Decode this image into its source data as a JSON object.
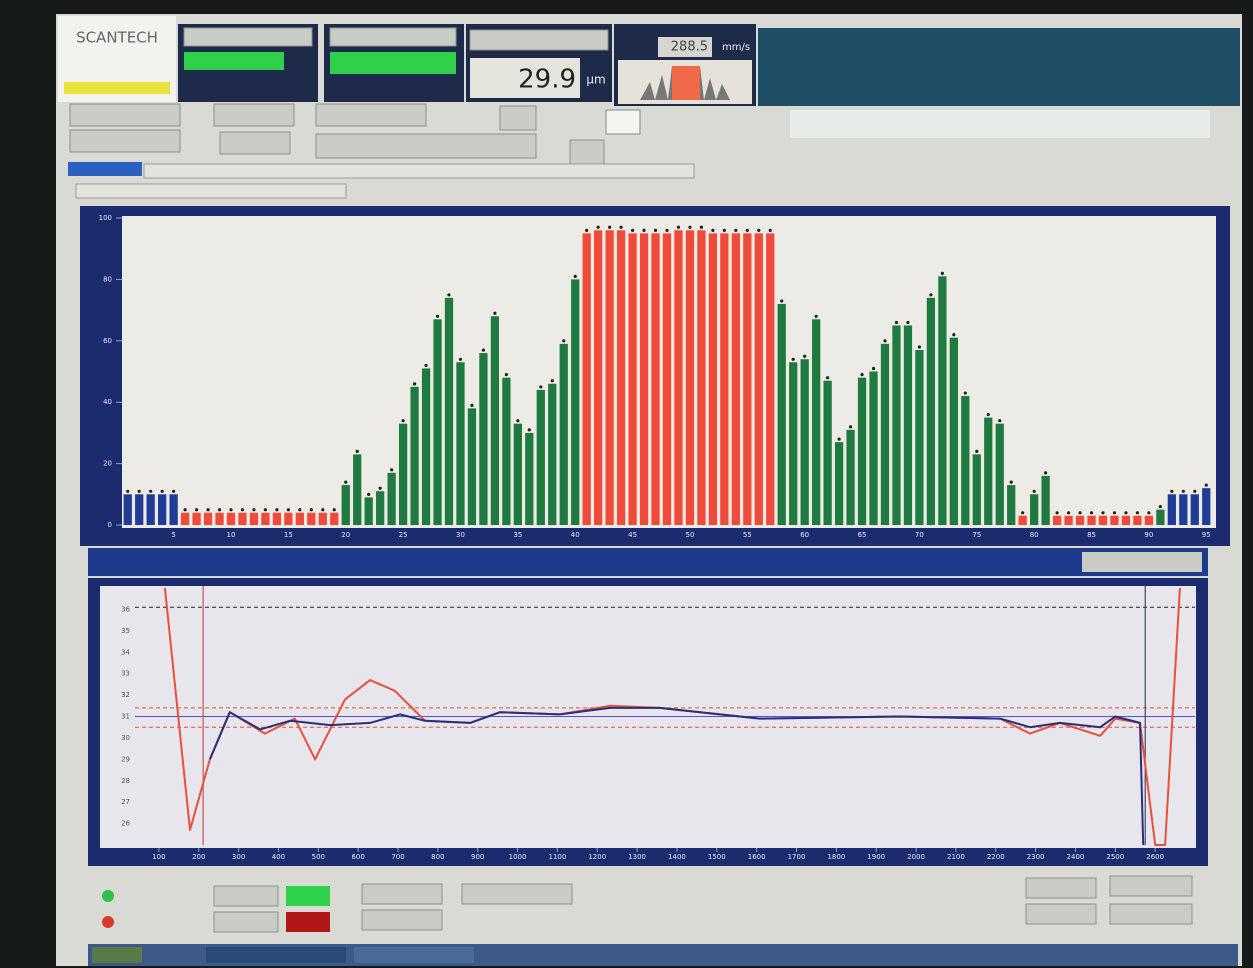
{
  "header": {
    "logo": "SCANTECH",
    "reading": "29.9",
    "unit": "µm",
    "speed": "288.5",
    "speed_unit": "mm/s"
  },
  "chart_data": [
    {
      "type": "bar",
      "categories": [
        null,
        null,
        null,
        null,
        5,
        null,
        null,
        null,
        null,
        10,
        null,
        null,
        null,
        null,
        15,
        null,
        null,
        null,
        null,
        20,
        null,
        null,
        null,
        null,
        25,
        null,
        null,
        null,
        null,
        30,
        null,
        null,
        null,
        null,
        35,
        null,
        null,
        null,
        null,
        40,
        null,
        null,
        null,
        null,
        45,
        null,
        null,
        null,
        null,
        50,
        null,
        null,
        null,
        null,
        55,
        null,
        null,
        null,
        null,
        60,
        null,
        null,
        null,
        null,
        65,
        null,
        null,
        null,
        null,
        70,
        null,
        null,
        null,
        null,
        75,
        null,
        null,
        null,
        null,
        80,
        null,
        null,
        null,
        null,
        85,
        null,
        null,
        null,
        null,
        90,
        null,
        null,
        null,
        null,
        95
      ],
      "values": [
        10,
        10,
        10,
        10,
        10,
        4,
        4,
        4,
        4,
        4,
        4,
        4,
        4,
        4,
        4,
        4,
        4,
        4,
        4,
        13,
        23,
        9,
        11,
        17,
        33,
        45,
        51,
        67,
        74,
        53,
        38,
        56,
        68,
        48,
        33,
        30,
        44,
        46,
        59,
        80,
        95,
        96,
        96,
        96,
        95,
        95,
        95,
        95,
        96,
        96,
        96,
        95,
        95,
        95,
        95,
        95,
        95,
        72,
        53,
        54,
        67,
        47,
        27,
        31,
        48,
        50,
        59,
        65,
        65,
        57,
        74,
        81,
        61,
        42,
        23,
        35,
        33,
        13,
        3,
        10,
        16,
        3,
        3,
        3,
        3,
        3,
        3,
        3,
        3,
        3,
        5,
        10,
        10,
        10,
        12
      ],
      "colors": [
        "#203c96",
        "#203c96",
        "#203c96",
        "#203c96",
        "#203c96",
        "#f04a3a",
        "#f04a3a",
        "#f04a3a",
        "#f04a3a",
        "#f04a3a",
        "#f04a3a",
        "#f04a3a",
        "#f04a3a",
        "#f04a3a",
        "#f04a3a",
        "#f04a3a",
        "#f04a3a",
        "#f04a3a",
        "#f04a3a",
        "#1f7a40",
        "#1f7a40",
        "#1f7a40",
        "#1f7a40",
        "#1f7a40",
        "#1f7a40",
        "#1f7a40",
        "#1f7a40",
        "#1f7a40",
        "#1f7a40",
        "#1f7a40",
        "#1f7a40",
        "#1f7a40",
        "#1f7a40",
        "#1f7a40",
        "#1f7a40",
        "#1f7a40",
        "#1f7a40",
        "#1f7a40",
        "#1f7a40",
        "#1f7a40",
        "#f04a3a",
        "#f04a3a",
        "#f04a3a",
        "#f04a3a",
        "#f04a3a",
        "#f04a3a",
        "#f04a3a",
        "#f04a3a",
        "#f04a3a",
        "#f04a3a",
        "#f04a3a",
        "#f04a3a",
        "#f04a3a",
        "#f04a3a",
        "#f04a3a",
        "#f04a3a",
        "#f04a3a",
        "#1f7a40",
        "#1f7a40",
        "#1f7a40",
        "#1f7a40",
        "#1f7a40",
        "#1f7a40",
        "#1f7a40",
        "#1f7a40",
        "#1f7a40",
        "#1f7a40",
        "#1f7a40",
        "#1f7a40",
        "#1f7a40",
        "#1f7a40",
        "#1f7a40",
        "#1f7a40",
        "#1f7a40",
        "#1f7a40",
        "#1f7a40",
        "#1f7a40",
        "#1f7a40",
        "#f04a3a",
        "#1f7a40",
        "#1f7a40",
        "#f04a3a",
        "#f04a3a",
        "#f04a3a",
        "#f04a3a",
        "#f04a3a",
        "#f04a3a",
        "#f04a3a",
        "#f04a3a",
        "#f04a3a",
        "#1f7a40",
        "#203c96",
        "#203c96",
        "#203c96",
        "#203c96"
      ],
      "ylim": [
        0,
        100
      ],
      "yticks": [
        0,
        20,
        40,
        60,
        80,
        100
      ]
    },
    {
      "type": "line",
      "xlim": [
        40,
        2700
      ],
      "xticks": [
        100,
        200,
        300,
        400,
        500,
        600,
        700,
        800,
        900,
        1000,
        1100,
        1200,
        1300,
        1400,
        1500,
        1600,
        1700,
        1800,
        1900,
        2000,
        2100,
        2200,
        2300,
        2400,
        2500,
        2600
      ],
      "ylim": [
        25,
        37
      ],
      "yticks": [
        26,
        27,
        28,
        29,
        30,
        31,
        32,
        33,
        34,
        35,
        36
      ],
      "series": [
        {
          "color": "#e8503a",
          "x": [
            115,
            178,
            228,
            278,
            366,
            441,
            492,
            567,
            630,
            692,
            768,
            881,
            956,
            1106,
            1232,
            1357,
            1458,
            1608,
            1960,
            2211,
            2286,
            2361,
            2462,
            2500,
            2562,
            2600,
            2625,
            2662
          ],
          "values": [
            37,
            25.7,
            29.0,
            31.2,
            30.2,
            30.9,
            29.0,
            31.8,
            32.7,
            32.2,
            30.8,
            30.7,
            31.2,
            31.1,
            31.5,
            31.4,
            31.2,
            30.9,
            31.0,
            30.9,
            30.2,
            30.7,
            30.1,
            30.9,
            30.7,
            25,
            25,
            37
          ]
        },
        {
          "color": "#2a2f7a",
          "x": [
            228,
            278,
            354,
            429,
            530,
            630,
            705,
            768,
            881,
            956,
            1106,
            1232,
            1357,
            1458,
            1608,
            1960,
            2211,
            2286,
            2361,
            2462,
            2500,
            2562,
            2570
          ],
          "values": [
            29.0,
            31.2,
            30.4,
            30.8,
            30.6,
            30.7,
            31.1,
            30.8,
            30.7,
            31.2,
            31.1,
            31.4,
            31.4,
            31.2,
            30.9,
            31.0,
            30.9,
            30.5,
            30.7,
            30.5,
            31.0,
            30.7,
            25
          ]
        }
      ],
      "reference_lines": [
        {
          "value": 36.1,
          "color": "#222222"
        },
        {
          "value": 31.4,
          "color": "#e8503a"
        },
        {
          "value": 31.0,
          "color": "#5a4fd8"
        },
        {
          "value": 30.5,
          "color": "#e8503a"
        }
      ],
      "vertical_lines": [
        {
          "value": 211,
          "color": "#c0392b"
        },
        {
          "value": 2575,
          "color": "#222a55"
        }
      ]
    }
  ]
}
